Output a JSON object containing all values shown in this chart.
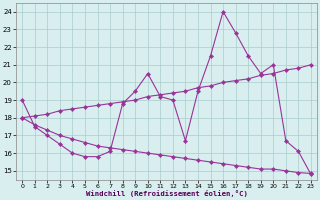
{
  "xlabel": "Windchill (Refroidissement éolien,°C)",
  "xlim": [
    -0.5,
    23.5
  ],
  "ylim": [
    14.5,
    24.5
  ],
  "yticks": [
    15,
    16,
    17,
    18,
    19,
    20,
    21,
    22,
    23,
    24
  ],
  "xticks": [
    0,
    1,
    2,
    3,
    4,
    5,
    6,
    7,
    8,
    9,
    10,
    11,
    12,
    13,
    14,
    15,
    16,
    17,
    18,
    19,
    20,
    21,
    22,
    23
  ],
  "bg_color": "#d9eeee",
  "grid_color": "#aacccc",
  "line_color": "#993399",
  "line1_x": [
    0,
    1,
    2,
    3,
    4,
    5,
    6,
    7,
    8,
    9,
    10,
    11,
    12,
    13,
    14,
    15,
    16,
    17,
    18,
    19,
    20,
    21,
    22,
    23
  ],
  "line1_y": [
    19.0,
    17.5,
    17.0,
    16.5,
    16.0,
    15.8,
    15.8,
    16.1,
    18.8,
    19.5,
    20.5,
    19.2,
    19.0,
    16.7,
    19.5,
    21.5,
    24.0,
    22.8,
    21.5,
    20.5,
    21.0,
    16.7,
    16.1,
    14.8
  ],
  "line2_x": [
    0,
    1,
    2,
    3,
    4,
    5,
    6,
    7,
    8,
    9,
    10,
    11,
    12,
    13,
    14,
    15,
    16,
    17,
    18,
    19,
    20,
    21,
    22,
    23
  ],
  "line2_y": [
    18.0,
    18.1,
    18.2,
    18.4,
    18.5,
    18.6,
    18.7,
    18.8,
    18.9,
    19.0,
    19.2,
    19.3,
    19.4,
    19.5,
    19.7,
    19.8,
    20.0,
    20.1,
    20.2,
    20.4,
    20.5,
    20.7,
    20.8,
    21.0
  ],
  "line3_x": [
    0,
    1,
    2,
    3,
    4,
    5,
    6,
    7,
    8,
    9,
    10,
    11,
    12,
    13,
    14,
    15,
    16,
    17,
    18,
    19,
    20,
    21,
    22,
    23
  ],
  "line3_y": [
    18.0,
    17.6,
    17.3,
    17.0,
    16.8,
    16.6,
    16.4,
    16.3,
    16.2,
    16.1,
    16.0,
    15.9,
    15.8,
    15.7,
    15.6,
    15.5,
    15.4,
    15.3,
    15.2,
    15.1,
    15.1,
    15.0,
    14.9,
    14.85
  ]
}
